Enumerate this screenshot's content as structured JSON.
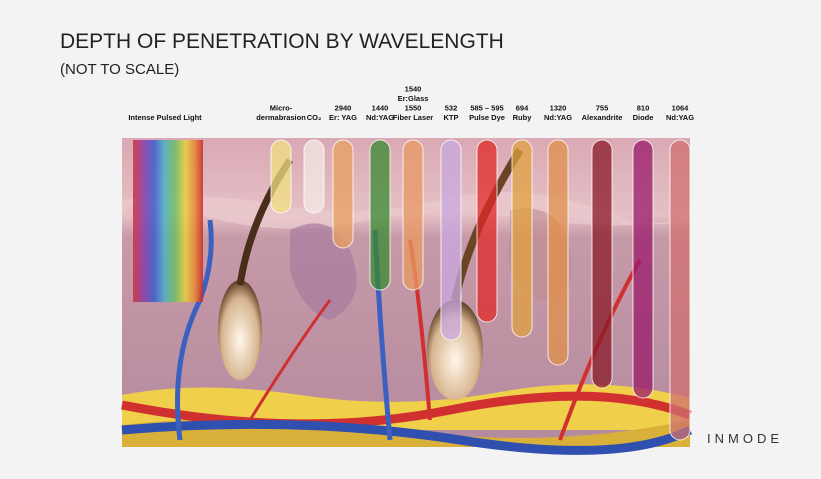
{
  "header": {
    "title": "DEPTH OF PENETRATION BY WAVELENGTH",
    "subtitle": "(NOT TO SCALE)"
  },
  "labels": [
    {
      "lines": [
        "Intense Pulsed Light"
      ]
    },
    {
      "lines": [
        "Micro-",
        "dermabrasion"
      ]
    },
    {
      "lines": [
        "CO₂"
      ]
    },
    {
      "lines": [
        "2940",
        "Er: YAG"
      ]
    },
    {
      "lines": [
        "1440",
        "Nd:YAG"
      ]
    },
    {
      "lines": [
        "1540",
        "Er:Glass",
        "1550",
        "Fiber Laser"
      ]
    },
    {
      "lines": [
        "532",
        "KTP"
      ]
    },
    {
      "lines": [
        "585 – 595",
        "Pulse Dye"
      ]
    },
    {
      "lines": [
        "694",
        "Ruby"
      ]
    },
    {
      "lines": [
        "1320",
        "Nd:YAG"
      ]
    },
    {
      "lines": [
        "755",
        "Alexandrite"
      ]
    },
    {
      "lines": [
        "810",
        "Diode"
      ]
    },
    {
      "lines": [
        "1064",
        "Nd:YAG"
      ]
    }
  ],
  "brand": "INMODE"
}
